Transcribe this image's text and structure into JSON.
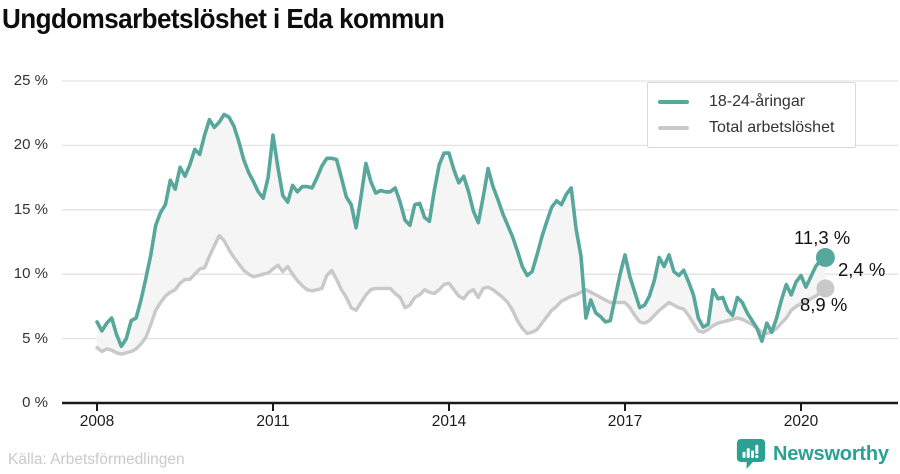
{
  "title": "Ungdomsarbetslöshet i Eda kommun",
  "legend": {
    "series1": "18-24-åringar",
    "series2": "Total arbetslöshet"
  },
  "end_labels": {
    "youth": "11,3 %",
    "gap": "2,4 %",
    "total": "8,9 %"
  },
  "source": "Källa: Arbetsförmedlingen",
  "logo_text": "Newsworthy",
  "colors": {
    "youth": "#58a79c",
    "total": "#c9c9c9",
    "fill": "#f5f5f5",
    "grid": "#e3e3e3",
    "axis": "#1a1a1a",
    "logo": "#2aa193",
    "muted": "#cacaca",
    "text": "#111111"
  },
  "chart_data": {
    "type": "line",
    "title": "Ungdomsarbetslöshet i Eda kommun",
    "frequency": "monthly",
    "x_start_label": "2008-01",
    "x_end_label": "2020-06",
    "xlabel": "",
    "ylabel": "",
    "ylim": [
      0,
      25
    ],
    "grid": "horizontal",
    "legend_position": "top-right",
    "yticks": [
      "25 %",
      "20 %",
      "15 %",
      "10 %",
      "5 %",
      "0 %"
    ],
    "ytick_values": [
      25,
      20,
      15,
      10,
      5,
      0
    ],
    "xticks": [
      2008,
      2011,
      2014,
      2017,
      2020
    ],
    "gap_label": "2,4 %",
    "series": [
      {
        "name": "18-24-åringar",
        "color": "#58a79c",
        "end_label": "11,3 %",
        "end_value": 11.3,
        "values": [
          6.3,
          5.6,
          6.2,
          6.6,
          5.3,
          4.4,
          5.0,
          6.4,
          6.6,
          8.0,
          9.7,
          11.5,
          13.8,
          14.8,
          15.4,
          17.3,
          16.6,
          18.3,
          17.6,
          18.5,
          19.7,
          19.3,
          20.8,
          22.0,
          21.4,
          21.8,
          22.4,
          22.2,
          21.5,
          20.3,
          18.9,
          17.9,
          17.2,
          16.4,
          15.9,
          17.5,
          20.8,
          18.3,
          16.1,
          15.6,
          16.9,
          16.4,
          16.8,
          16.8,
          16.7,
          17.5,
          18.4,
          19.0,
          19.0,
          18.9,
          17.5,
          16.0,
          15.4,
          13.6,
          16.0,
          18.6,
          17.2,
          16.3,
          16.5,
          16.4,
          16.4,
          16.7,
          15.6,
          14.2,
          13.8,
          15.4,
          15.5,
          14.4,
          14.1,
          16.5,
          18.5,
          19.4,
          19.4,
          18.1,
          17.1,
          17.6,
          16.4,
          14.9,
          14.0,
          16.0,
          18.2,
          16.8,
          15.8,
          14.7,
          13.8,
          12.9,
          11.8,
          10.6,
          9.9,
          10.2,
          11.5,
          12.9,
          14.1,
          15.2,
          15.7,
          15.4,
          16.2,
          16.7,
          13.5,
          11.4,
          6.6,
          8.0,
          7.0,
          6.7,
          6.3,
          6.4,
          8.2,
          10.0,
          11.5,
          9.8,
          8.6,
          7.4,
          7.6,
          8.3,
          9.5,
          11.3,
          10.6,
          11.5,
          10.2,
          9.9,
          10.3,
          9.4,
          8.4,
          6.6,
          5.9,
          6.1,
          8.8,
          8.1,
          8.2,
          7.2,
          6.8,
          8.2,
          7.8,
          7.0,
          6.4,
          5.8,
          4.8,
          6.2,
          5.5,
          6.6,
          8.0,
          9.2,
          8.4,
          9.4,
          9.9,
          9.0,
          9.8,
          10.6,
          11.1,
          11.3
        ]
      },
      {
        "name": "Total arbetslöshet",
        "color": "#c9c9c9",
        "end_label": "8,9 %",
        "end_value": 8.9,
        "values": [
          4.3,
          4.0,
          4.2,
          4.1,
          3.9,
          3.8,
          3.9,
          4.0,
          4.2,
          4.6,
          5.1,
          6.1,
          7.2,
          7.8,
          8.3,
          8.6,
          8.8,
          9.3,
          9.6,
          9.6,
          10.0,
          10.4,
          10.5,
          11.4,
          12.2,
          13.0,
          12.6,
          11.9,
          11.3,
          10.8,
          10.3,
          10.0,
          9.8,
          9.9,
          10.0,
          10.1,
          10.4,
          10.7,
          10.2,
          10.6,
          10.0,
          9.5,
          9.1,
          8.8,
          8.7,
          8.8,
          8.9,
          9.9,
          10.3,
          9.6,
          8.8,
          8.2,
          7.4,
          7.2,
          7.8,
          8.4,
          8.8,
          8.9,
          8.9,
          8.9,
          8.9,
          8.5,
          8.2,
          7.4,
          7.6,
          8.2,
          8.4,
          8.8,
          8.6,
          8.5,
          8.8,
          9.2,
          9.3,
          8.8,
          8.3,
          8.1,
          8.6,
          8.8,
          8.2,
          8.9,
          9.0,
          8.8,
          8.5,
          8.2,
          7.8,
          7.2,
          6.4,
          5.8,
          5.4,
          5.5,
          5.7,
          6.2,
          6.7,
          7.2,
          7.5,
          7.9,
          8.1,
          8.3,
          8.4,
          8.6,
          8.8,
          8.6,
          8.4,
          8.2,
          8.0,
          7.8,
          7.8,
          7.8,
          7.8,
          7.4,
          6.8,
          6.3,
          6.2,
          6.4,
          6.8,
          7.2,
          7.5,
          7.8,
          7.6,
          7.4,
          7.3,
          6.8,
          6.2,
          5.6,
          5.5,
          5.7,
          6.0,
          6.2,
          6.3,
          6.4,
          6.5,
          6.6,
          6.5,
          6.3,
          6.1,
          5.8,
          5.5,
          5.4,
          5.5,
          5.8,
          6.2,
          6.6,
          7.2,
          7.5,
          7.7,
          7.9,
          8.1,
          8.3,
          8.6,
          8.9
        ]
      }
    ]
  }
}
